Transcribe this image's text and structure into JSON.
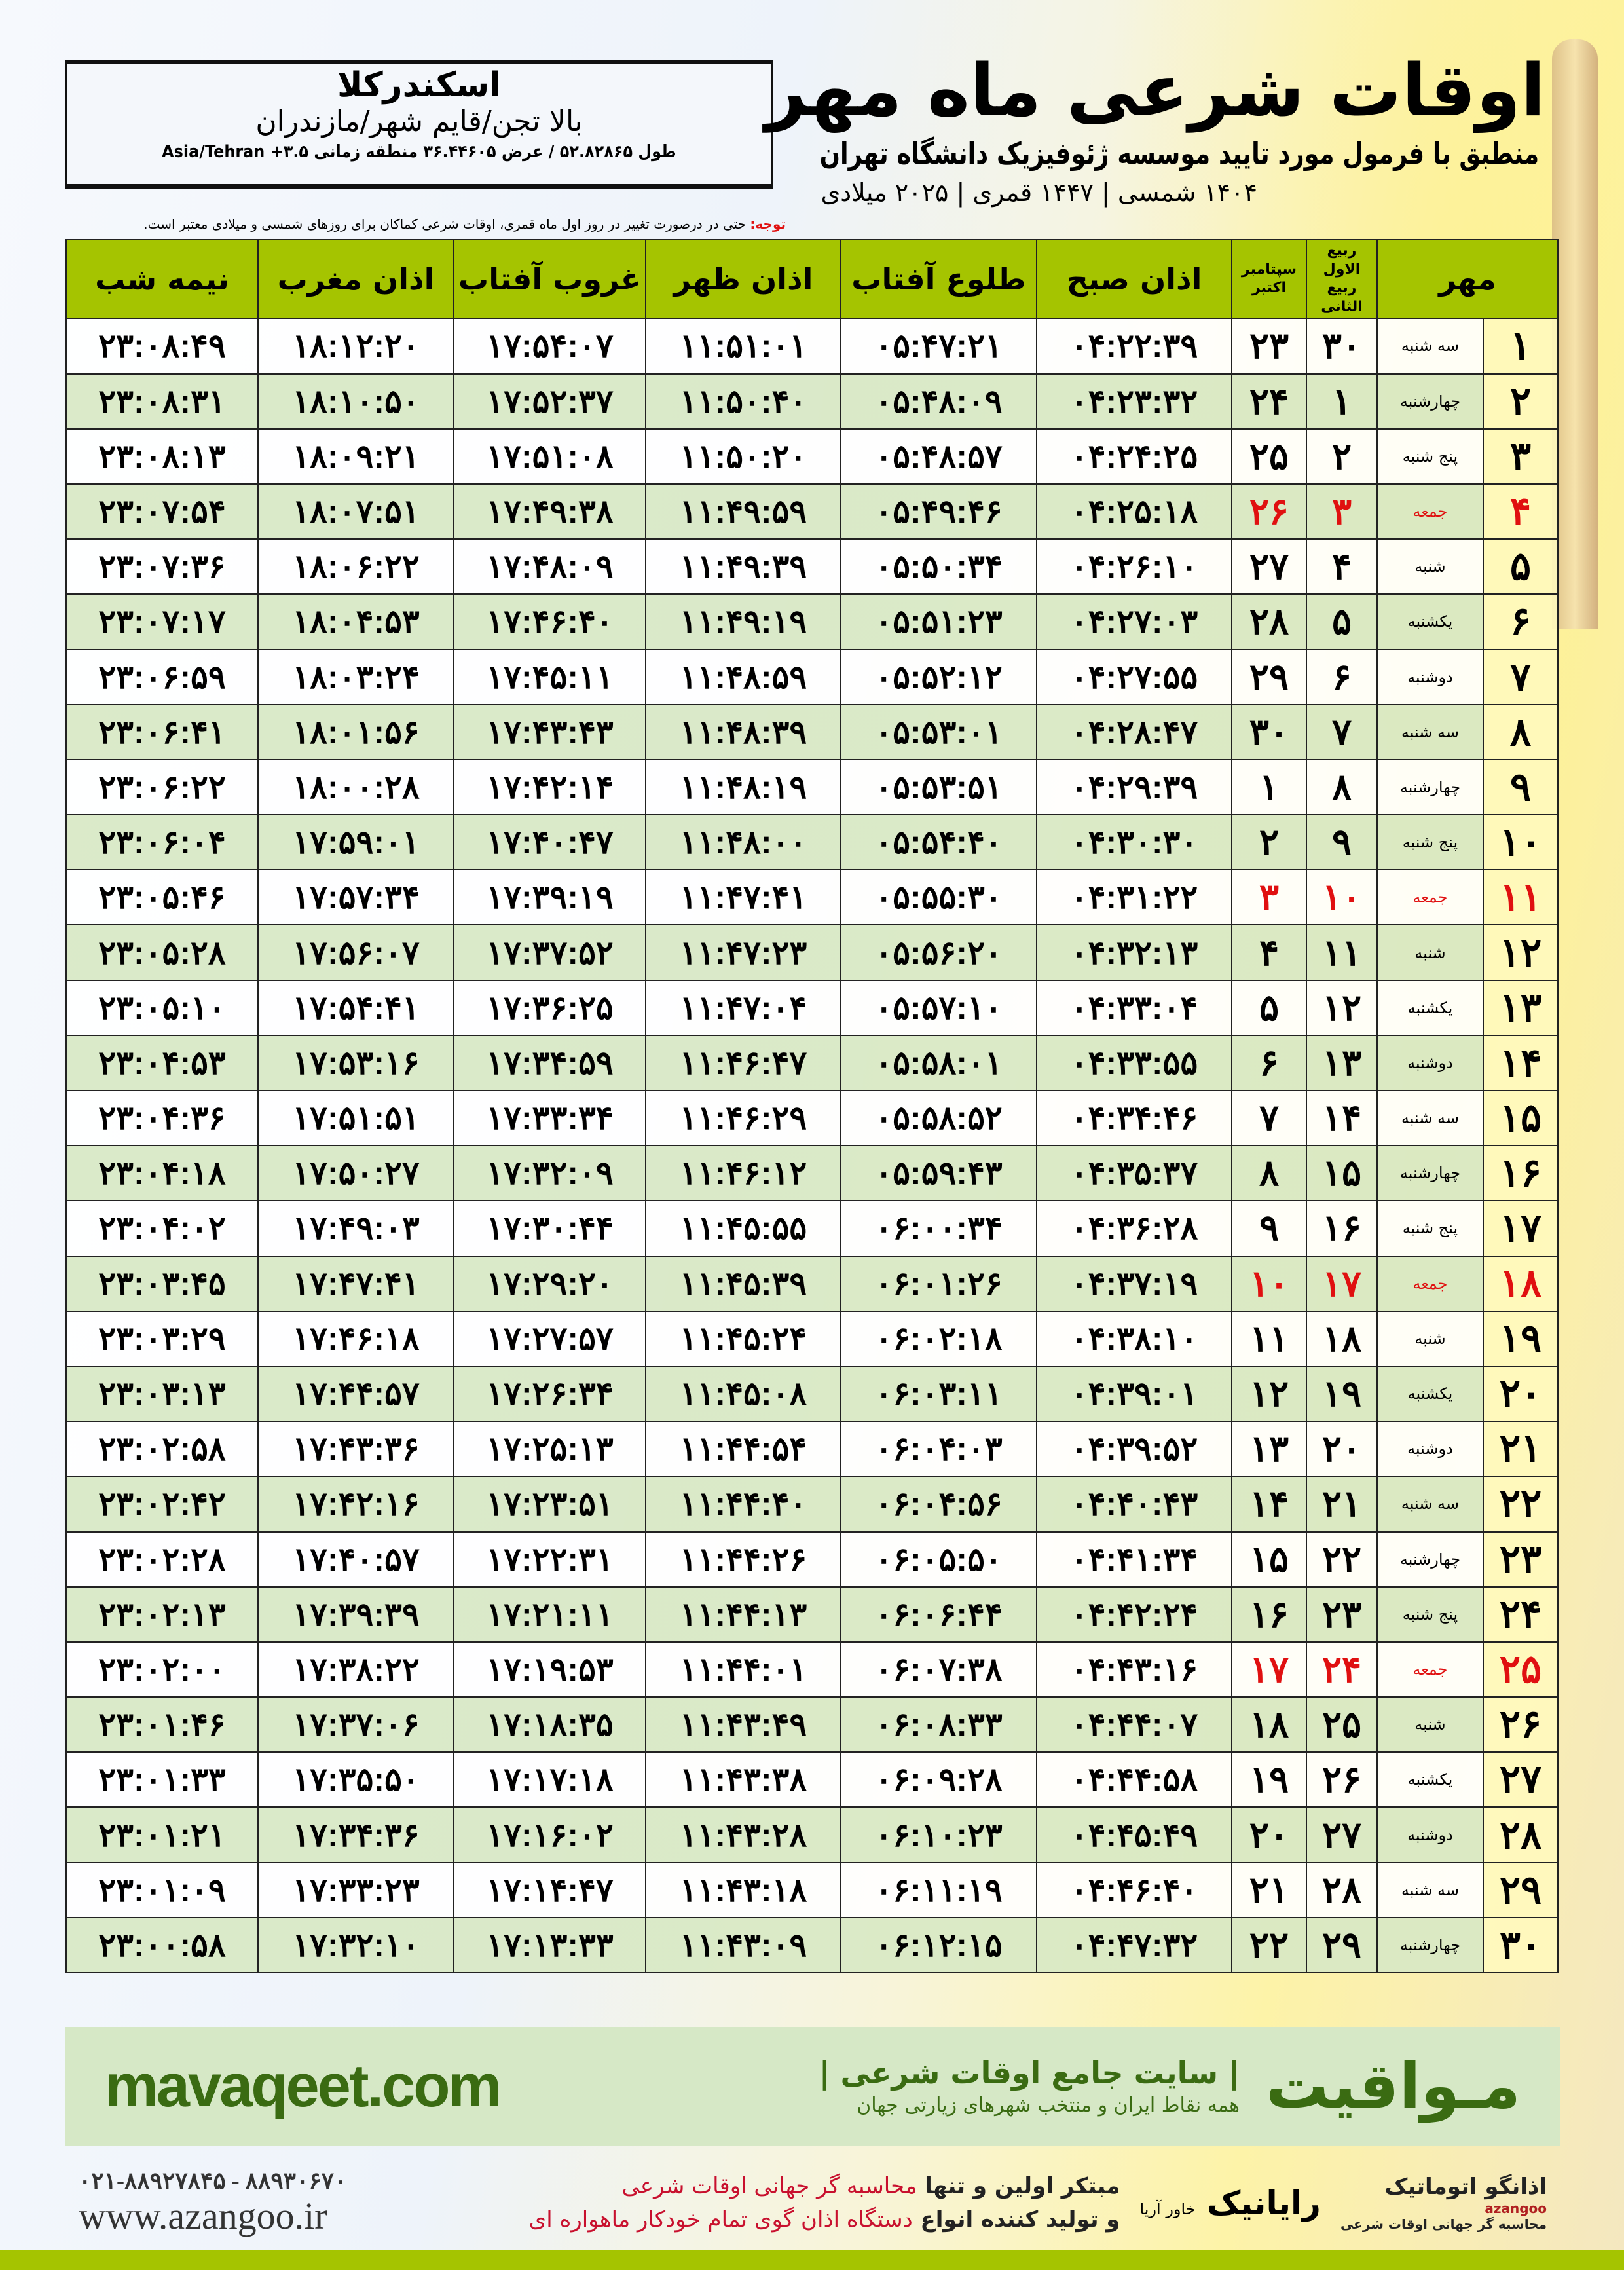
{
  "location": {
    "city": "اسکندرکلا",
    "region": "بالا تجن/قایم شهر/مازندران",
    "coords": "طول ۵۲.۸۲۸۶۵ / عرض ۳۶.۴۴۶۰۵ منطقه زمانی ۳.۵+ Asia/Tehran"
  },
  "header": {
    "title": "اوقات شرعی ماه مهر",
    "subtitle": "منطبق با فرمول مورد تایید موسسه ژئوفیزیک دانشگاه تهران",
    "years": "۱۴۰۴ شمسی | ۱۴۴۷ قمری | ۲۰۲۵ میلادی"
  },
  "note": {
    "label": "توجه:",
    "text": "حتی در درصورت تغییر در روز اول ماه قمری، اوقات شرعی کماکان برای روزهای شمسی و میلادی معتبر است."
  },
  "columns": {
    "month": "مهر",
    "hijri": "ربیع الاول ربیع الثانی",
    "gregorian": "سپتامبر اکتبر",
    "fajr": "اذان صبح",
    "sunrise": "طلوع آفتاب",
    "dhuhr": "اذان ظهر",
    "sunset": "غروب آفتاب",
    "maghrib": "اذان مغرب",
    "midnight": "نیمه شب"
  },
  "colors": {
    "header_green": "#a5c400",
    "friday_red": "#e01010",
    "brand_green": "#3a6b12"
  },
  "rows": [
    [
      "۱",
      "سه شنبه",
      "۳۰",
      "۲۳",
      "۰۴:۲۲:۳۹",
      "۰۵:۴۷:۲۱",
      "۱۱:۵۱:۰۱",
      "۱۷:۵۴:۰۷",
      "۱۸:۱۲:۲۰",
      "۲۳:۰۸:۴۹"
    ],
    [
      "۲",
      "چهارشنبه",
      "۱",
      "۲۴",
      "۰۴:۲۳:۳۲",
      "۰۵:۴۸:۰۹",
      "۱۱:۵۰:۴۰",
      "۱۷:۵۲:۳۷",
      "۱۸:۱۰:۵۰",
      "۲۳:۰۸:۳۱"
    ],
    [
      "۳",
      "پنج شنبه",
      "۲",
      "۲۵",
      "۰۴:۲۴:۲۵",
      "۰۵:۴۸:۵۷",
      "۱۱:۵۰:۲۰",
      "۱۷:۵۱:۰۸",
      "۱۸:۰۹:۲۱",
      "۲۳:۰۸:۱۳"
    ],
    [
      "۴",
      "جمعه",
      "۳",
      "۲۶",
      "۰۴:۲۵:۱۸",
      "۰۵:۴۹:۴۶",
      "۱۱:۴۹:۵۹",
      "۱۷:۴۹:۳۸",
      "۱۸:۰۷:۵۱",
      "۲۳:۰۷:۵۴"
    ],
    [
      "۵",
      "شنبه",
      "۴",
      "۲۷",
      "۰۴:۲۶:۱۰",
      "۰۵:۵۰:۳۴",
      "۱۱:۴۹:۳۹",
      "۱۷:۴۸:۰۹",
      "۱۸:۰۶:۲۲",
      "۲۳:۰۷:۳۶"
    ],
    [
      "۶",
      "یکشنبه",
      "۵",
      "۲۸",
      "۰۴:۲۷:۰۳",
      "۰۵:۵۱:۲۳",
      "۱۱:۴۹:۱۹",
      "۱۷:۴۶:۴۰",
      "۱۸:۰۴:۵۳",
      "۲۳:۰۷:۱۷"
    ],
    [
      "۷",
      "دوشنبه",
      "۶",
      "۲۹",
      "۰۴:۲۷:۵۵",
      "۰۵:۵۲:۱۲",
      "۱۱:۴۸:۵۹",
      "۱۷:۴۵:۱۱",
      "۱۸:۰۳:۲۴",
      "۲۳:۰۶:۵۹"
    ],
    [
      "۸",
      "سه شنبه",
      "۷",
      "۳۰",
      "۰۴:۲۸:۴۷",
      "۰۵:۵۳:۰۱",
      "۱۱:۴۸:۳۹",
      "۱۷:۴۳:۴۳",
      "۱۸:۰۱:۵۶",
      "۲۳:۰۶:۴۱"
    ],
    [
      "۹",
      "چهارشنبه",
      "۸",
      "۱",
      "۰۴:۲۹:۳۹",
      "۰۵:۵۳:۵۱",
      "۱۱:۴۸:۱۹",
      "۱۷:۴۲:۱۴",
      "۱۸:۰۰:۲۸",
      "۲۳:۰۶:۲۲"
    ],
    [
      "۱۰",
      "پنج شنبه",
      "۹",
      "۲",
      "۰۴:۳۰:۳۰",
      "۰۵:۵۴:۴۰",
      "۱۱:۴۸:۰۰",
      "۱۷:۴۰:۴۷",
      "۱۷:۵۹:۰۱",
      "۲۳:۰۶:۰۴"
    ],
    [
      "۱۱",
      "جمعه",
      "۱۰",
      "۳",
      "۰۴:۳۱:۲۲",
      "۰۵:۵۵:۳۰",
      "۱۱:۴۷:۴۱",
      "۱۷:۳۹:۱۹",
      "۱۷:۵۷:۳۴",
      "۲۳:۰۵:۴۶"
    ],
    [
      "۱۲",
      "شنبه",
      "۱۱",
      "۴",
      "۰۴:۳۲:۱۳",
      "۰۵:۵۶:۲۰",
      "۱۱:۴۷:۲۳",
      "۱۷:۳۷:۵۲",
      "۱۷:۵۶:۰۷",
      "۲۳:۰۵:۲۸"
    ],
    [
      "۱۳",
      "یکشنبه",
      "۱۲",
      "۵",
      "۰۴:۳۳:۰۴",
      "۰۵:۵۷:۱۰",
      "۱۱:۴۷:۰۴",
      "۱۷:۳۶:۲۵",
      "۱۷:۵۴:۴۱",
      "۲۳:۰۵:۱۰"
    ],
    [
      "۱۴",
      "دوشنبه",
      "۱۳",
      "۶",
      "۰۴:۳۳:۵۵",
      "۰۵:۵۸:۰۱",
      "۱۱:۴۶:۴۷",
      "۱۷:۳۴:۵۹",
      "۱۷:۵۳:۱۶",
      "۲۳:۰۴:۵۳"
    ],
    [
      "۱۵",
      "سه شنبه",
      "۱۴",
      "۷",
      "۰۴:۳۴:۴۶",
      "۰۵:۵۸:۵۲",
      "۱۱:۴۶:۲۹",
      "۱۷:۳۳:۳۴",
      "۱۷:۵۱:۵۱",
      "۲۳:۰۴:۳۶"
    ],
    [
      "۱۶",
      "چهارشنبه",
      "۱۵",
      "۸",
      "۰۴:۳۵:۳۷",
      "۰۵:۵۹:۴۳",
      "۱۱:۴۶:۱۲",
      "۱۷:۳۲:۰۹",
      "۱۷:۵۰:۲۷",
      "۲۳:۰۴:۱۸"
    ],
    [
      "۱۷",
      "پنج شنبه",
      "۱۶",
      "۹",
      "۰۴:۳۶:۲۸",
      "۰۶:۰۰:۳۴",
      "۱۱:۴۵:۵۵",
      "۱۷:۳۰:۴۴",
      "۱۷:۴۹:۰۳",
      "۲۳:۰۴:۰۲"
    ],
    [
      "۱۸",
      "جمعه",
      "۱۷",
      "۱۰",
      "۰۴:۳۷:۱۹",
      "۰۶:۰۱:۲۶",
      "۱۱:۴۵:۳۹",
      "۱۷:۲۹:۲۰",
      "۱۷:۴۷:۴۱",
      "۲۳:۰۳:۴۵"
    ],
    [
      "۱۹",
      "شنبه",
      "۱۸",
      "۱۱",
      "۰۴:۳۸:۱۰",
      "۰۶:۰۲:۱۸",
      "۱۱:۴۵:۲۴",
      "۱۷:۲۷:۵۷",
      "۱۷:۴۶:۱۸",
      "۲۳:۰۳:۲۹"
    ],
    [
      "۲۰",
      "یکشنبه",
      "۱۹",
      "۱۲",
      "۰۴:۳۹:۰۱",
      "۰۶:۰۳:۱۱",
      "۱۱:۴۵:۰۸",
      "۱۷:۲۶:۳۴",
      "۱۷:۴۴:۵۷",
      "۲۳:۰۳:۱۳"
    ],
    [
      "۲۱",
      "دوشنبه",
      "۲۰",
      "۱۳",
      "۰۴:۳۹:۵۲",
      "۰۶:۰۴:۰۳",
      "۱۱:۴۴:۵۴",
      "۱۷:۲۵:۱۳",
      "۱۷:۴۳:۳۶",
      "۲۳:۰۲:۵۸"
    ],
    [
      "۲۲",
      "سه شنبه",
      "۲۱",
      "۱۴",
      "۰۴:۴۰:۴۳",
      "۰۶:۰۴:۵۶",
      "۱۱:۴۴:۴۰",
      "۱۷:۲۳:۵۱",
      "۱۷:۴۲:۱۶",
      "۲۳:۰۲:۴۲"
    ],
    [
      "۲۳",
      "چهارشنبه",
      "۲۲",
      "۱۵",
      "۰۴:۴۱:۳۴",
      "۰۶:۰۵:۵۰",
      "۱۱:۴۴:۲۶",
      "۱۷:۲۲:۳۱",
      "۱۷:۴۰:۵۷",
      "۲۳:۰۲:۲۸"
    ],
    [
      "۲۴",
      "پنج شنبه",
      "۲۳",
      "۱۶",
      "۰۴:۴۲:۲۴",
      "۰۶:۰۶:۴۴",
      "۱۱:۴۴:۱۳",
      "۱۷:۲۱:۱۱",
      "۱۷:۳۹:۳۹",
      "۲۳:۰۲:۱۳"
    ],
    [
      "۲۵",
      "جمعه",
      "۲۴",
      "۱۷",
      "۰۴:۴۳:۱۶",
      "۰۶:۰۷:۳۸",
      "۱۱:۴۴:۰۱",
      "۱۷:۱۹:۵۳",
      "۱۷:۳۸:۲۲",
      "۲۳:۰۲:۰۰"
    ],
    [
      "۲۶",
      "شنبه",
      "۲۵",
      "۱۸",
      "۰۴:۴۴:۰۷",
      "۰۶:۰۸:۳۳",
      "۱۱:۴۳:۴۹",
      "۱۷:۱۸:۳۵",
      "۱۷:۳۷:۰۶",
      "۲۳:۰۱:۴۶"
    ],
    [
      "۲۷",
      "یکشنبه",
      "۲۶",
      "۱۹",
      "۰۴:۴۴:۵۸",
      "۰۶:۰۹:۲۸",
      "۱۱:۴۳:۳۸",
      "۱۷:۱۷:۱۸",
      "۱۷:۳۵:۵۰",
      "۲۳:۰۱:۳۳"
    ],
    [
      "۲۸",
      "دوشنبه",
      "۲۷",
      "۲۰",
      "۰۴:۴۵:۴۹",
      "۰۶:۱۰:۲۳",
      "۱۱:۴۳:۲۸",
      "۱۷:۱۶:۰۲",
      "۱۷:۳۴:۳۶",
      "۲۳:۰۱:۲۱"
    ],
    [
      "۲۹",
      "سه شنبه",
      "۲۸",
      "۲۱",
      "۰۴:۴۶:۴۰",
      "۰۶:۱۱:۱۹",
      "۱۱:۴۳:۱۸",
      "۱۷:۱۴:۴۷",
      "۱۷:۳۳:۲۳",
      "۲۳:۰۱:۰۹"
    ],
    [
      "۳۰",
      "چهارشنبه",
      "۲۹",
      "۲۲",
      "۰۴:۴۷:۳۲",
      "۰۶:۱۲:۱۵",
      "۱۱:۴۳:۰۹",
      "۱۷:۱۳:۳۳",
      "۱۷:۳۲:۱۰",
      "۲۳:۰۰:۵۸"
    ]
  ],
  "banner": {
    "brand": "مـواقیت",
    "tagline": "| سایت جامع اوقات شرعی |",
    "tagline2": "همه نقاط ایران و منتخب شهرهای زیارتی جهان",
    "site": "mavaqeet.com"
  },
  "footer": {
    "azangoo": "اذانگو اتوماتیک",
    "azangoo_sub": "محاسبه گر جهانی اوقات شرعی",
    "azangoo_en": "azangoo",
    "rayanik": "رایانیک",
    "rayanik_sub": "خاور آریا",
    "slogan1_a": "مبتکر اولین و تنها ",
    "slogan1_b": "محاسبه گر جهانی اوقات شرعی",
    "slogan2_a": "و تولید کننده انواع ",
    "slogan2_b": "دستگاه اذان گوی تمام خودکار ماهواره ای",
    "phone": "۰۲۱-۸۸۹۲۷۸۴۵ - ۸۸۹۳۰۶۷۰",
    "web": "www.azangoo.ir"
  }
}
